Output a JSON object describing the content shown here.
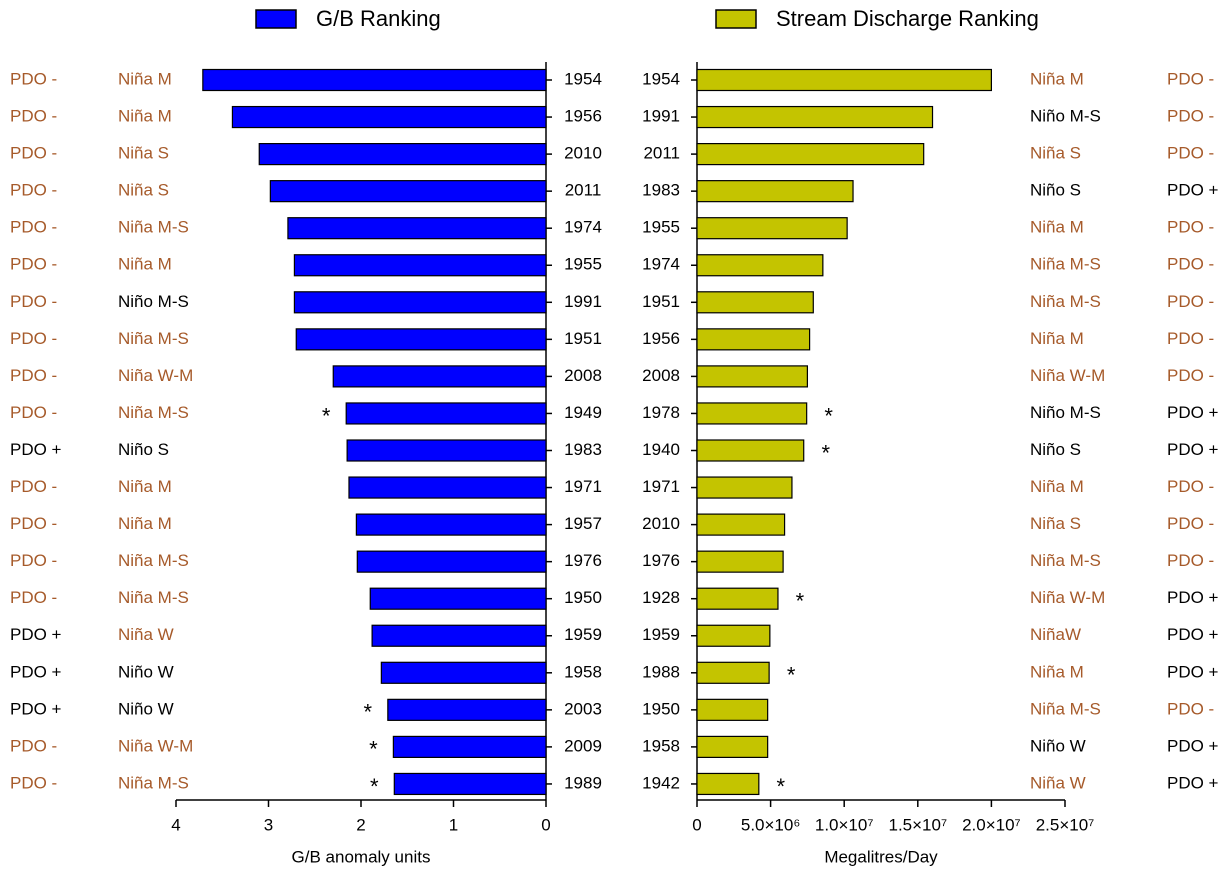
{
  "chart_data": [
    {
      "type": "bar",
      "orientation": "horizontal",
      "xlabel": "G/B anomaly units",
      "categories": [
        "1954",
        "1956",
        "2010",
        "2011",
        "1974",
        "1955",
        "1991",
        "1951",
        "2008",
        "1949",
        "1983",
        "1971",
        "1957",
        "1976",
        "1950",
        "1959",
        "1958",
        "2003",
        "2009",
        "1989"
      ],
      "series": [
        {
          "name": "G/B Ranking",
          "color": "#0000ff",
          "values": [
            3.71,
            3.39,
            3.1,
            2.98,
            2.79,
            2.72,
            2.72,
            2.7,
            2.3,
            2.16,
            2.15,
            2.13,
            2.05,
            2.04,
            1.9,
            1.88,
            1.78,
            1.71,
            1.65,
            1.64
          ]
        }
      ],
      "xlim": [
        4,
        0
      ],
      "xticks": [
        4,
        3,
        2,
        1,
        0
      ],
      "enso": [
        "Niña M",
        "Niña M",
        "Niña S",
        "Niña S",
        "Niña M-S",
        "Niña M",
        "Niño M-S",
        "Niña M-S",
        "Niña W-M",
        "Niña M-S",
        "Niño S",
        "Niña M",
        "Niña M",
        "Niña M-S",
        "Niña M-S",
        "Niña W",
        "Niño W",
        "Niño W",
        "Niña W-M",
        "Niña M-S"
      ],
      "enso_colors": [
        "#a65a2a",
        "#a65a2a",
        "#a65a2a",
        "#a65a2a",
        "#a65a2a",
        "#a65a2a",
        "#000000",
        "#a65a2a",
        "#a65a2a",
        "#a65a2a",
        "#000000",
        "#a65a2a",
        "#a65a2a",
        "#a65a2a",
        "#a65a2a",
        "#a65a2a",
        "#000000",
        "#000000",
        "#a65a2a",
        "#a65a2a"
      ],
      "pdo": [
        "PDO -",
        "PDO -",
        "PDO -",
        "PDO -",
        "PDO -",
        "PDO -",
        "PDO -",
        "PDO -",
        "PDO -",
        "PDO -",
        "PDO +",
        "PDO -",
        "PDO -",
        "PDO -",
        "PDO -",
        "PDO +",
        "PDO +",
        "PDO +",
        "PDO -",
        "PDO -"
      ],
      "pdo_colors": [
        "#a65a2a",
        "#a65a2a",
        "#a65a2a",
        "#a65a2a",
        "#a65a2a",
        "#a65a2a",
        "#a65a2a",
        "#a65a2a",
        "#a65a2a",
        "#a65a2a",
        "#000000",
        "#a65a2a",
        "#a65a2a",
        "#a65a2a",
        "#a65a2a",
        "#000000",
        "#000000",
        "#000000",
        "#a65a2a",
        "#a65a2a"
      ],
      "markers": [
        null,
        null,
        null,
        null,
        null,
        null,
        null,
        null,
        null,
        "*",
        null,
        null,
        null,
        null,
        null,
        null,
        null,
        "*",
        "*",
        "*"
      ]
    },
    {
      "type": "bar",
      "orientation": "horizontal",
      "xlabel": "Megalitres/Day",
      "categories": [
        "1954",
        "1991",
        "2011",
        "1983",
        "1955",
        "1974",
        "1951",
        "1956",
        "2008",
        "1978",
        "1940",
        "1971",
        "2010",
        "1976",
        "1928",
        "1959",
        "1988",
        "1950",
        "1958",
        "1942"
      ],
      "series": [
        {
          "name": "Stream Discharge Ranking",
          "color": "#c4c400",
          "values": [
            20000000,
            16000000,
            15400000,
            10600000,
            10200000,
            8550000,
            7900000,
            7650000,
            7500000,
            7450000,
            7250000,
            6450000,
            5950000,
            5850000,
            5500000,
            4950000,
            4900000,
            4800000,
            4800000,
            4200000
          ]
        }
      ],
      "xlim": [
        0,
        25000000
      ],
      "xticks": [
        0,
        {
          "value": 5000000,
          "label": "5.0×10⁶"
        },
        {
          "value": 10000000,
          "label": "1.0×10⁷"
        },
        {
          "value": 15000000,
          "label": "1.5×10⁷"
        },
        {
          "value": 20000000,
          "label": "2.0×10⁷"
        },
        {
          "value": 25000000,
          "label": "2.5×10⁷"
        }
      ],
      "enso": [
        "Niña M",
        "Niño M-S",
        "Niña S",
        "Niño S",
        "Niña M",
        "Niña M-S",
        "Niña M-S",
        "Niña M",
        "Niña W-M",
        "Niño M-S",
        "Niño S",
        "Niña M",
        "Niña S",
        "Niña M-S",
        "Niña W-M",
        "NiñaW",
        "Niña M",
        "Niña M-S",
        "Niño W",
        "Niña W"
      ],
      "enso_colors": [
        "#a65a2a",
        "#000000",
        "#a65a2a",
        "#000000",
        "#a65a2a",
        "#a65a2a",
        "#a65a2a",
        "#a65a2a",
        "#a65a2a",
        "#000000",
        "#000000",
        "#a65a2a",
        "#a65a2a",
        "#a65a2a",
        "#a65a2a",
        "#a65a2a",
        "#a65a2a",
        "#a65a2a",
        "#000000",
        "#a65a2a"
      ],
      "pdo": [
        "PDO -",
        "PDO -",
        "PDO -",
        "PDO +",
        "PDO -",
        "PDO -",
        "PDO -",
        "PDO -",
        "PDO -",
        "PDO +",
        "PDO +",
        "PDO -",
        "PDO -",
        "PDO -",
        "PDO +",
        "PDO +",
        "PDO +",
        "PDO -",
        "PDO +",
        "PDO +"
      ],
      "pdo_colors": [
        "#a65a2a",
        "#a65a2a",
        "#a65a2a",
        "#000000",
        "#a65a2a",
        "#a65a2a",
        "#a65a2a",
        "#a65a2a",
        "#a65a2a",
        "#000000",
        "#000000",
        "#a65a2a",
        "#a65a2a",
        "#a65a2a",
        "#000000",
        "#000000",
        "#000000",
        "#a65a2a",
        "#000000",
        "#000000"
      ],
      "markers": [
        null,
        null,
        null,
        null,
        null,
        null,
        null,
        null,
        null,
        "*",
        "*",
        null,
        null,
        null,
        "*",
        null,
        "*",
        null,
        null,
        "*"
      ]
    }
  ]
}
